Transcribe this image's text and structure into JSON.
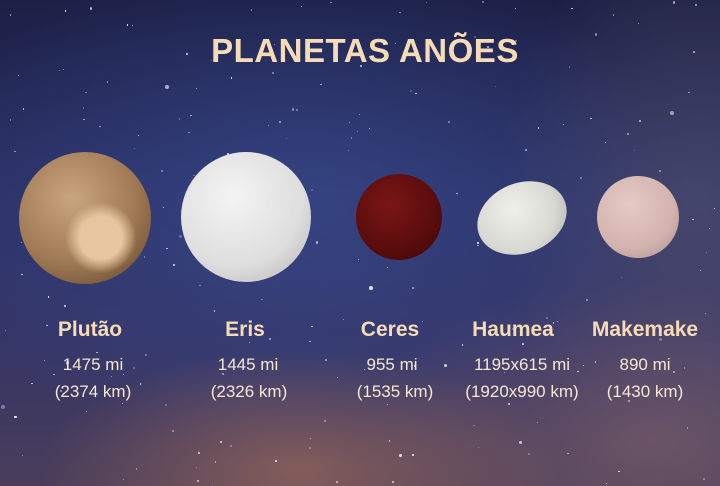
{
  "title": "PLANETAS ANÕES",
  "planets": [
    {
      "name": "Plutão",
      "mi": "1475 mi",
      "km": "(2374 km)",
      "color": "#b8916a"
    },
    {
      "name": "Eris",
      "mi": "1445 mi",
      "km": "(2326 km)",
      "color": "#e6e6e6"
    },
    {
      "name": "Ceres",
      "mi": "955 mi",
      "km": "(1535 km)",
      "color": "#6a0f0f"
    },
    {
      "name": "Haumea",
      "mi": "1195x615 mi",
      "km": "(1920x990 km)",
      "color": "#dedfd8"
    },
    {
      "name": "Makemake",
      "mi": "890 mi",
      "km": "(1430 km)",
      "color": "#d8b8b4"
    }
  ]
}
